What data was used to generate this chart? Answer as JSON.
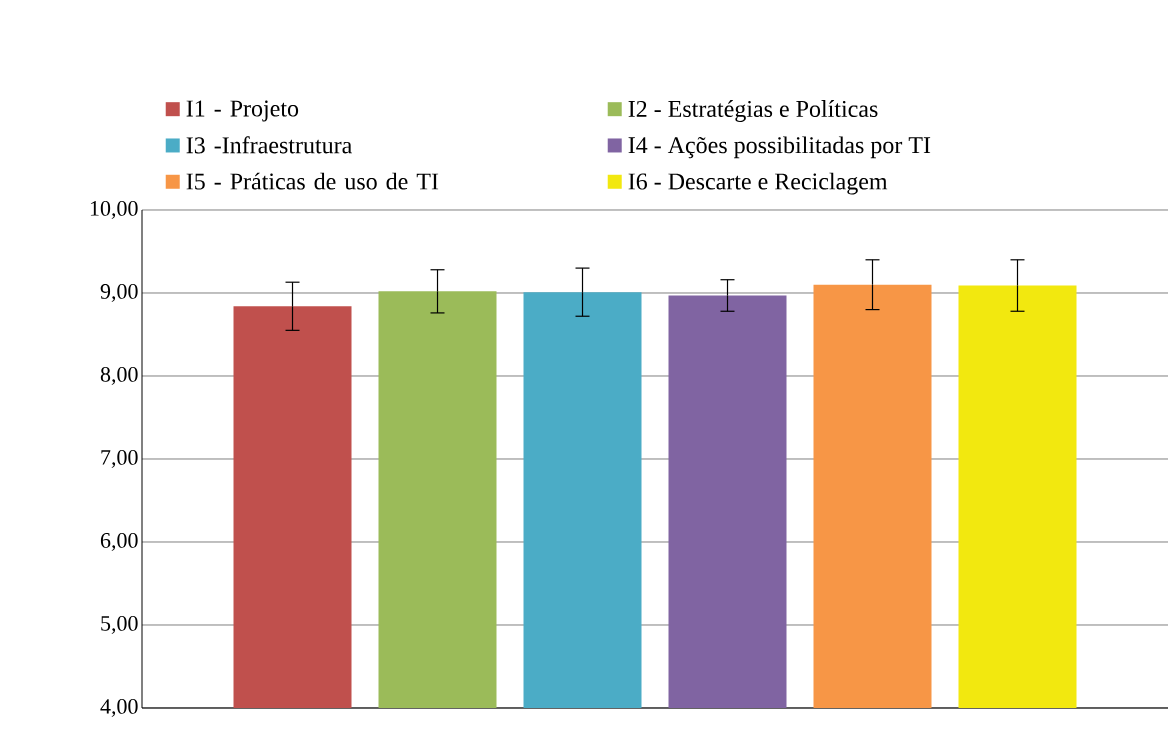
{
  "chart_data": {
    "type": "bar",
    "categories": [
      null
    ],
    "series": [
      {
        "name": "I1 - Projeto",
        "color": "#c0504d",
        "values": [
          8.84
        ],
        "errors": [
          0.29
        ]
      },
      {
        "name": "I2 - Estratégias e Políticas",
        "color": "#9bbb59",
        "values": [
          9.02
        ],
        "errors": [
          0.26
        ]
      },
      {
        "name": "I3 -Infraestrutura",
        "color": "#4bacc6",
        "values": [
          9.01
        ],
        "errors": [
          0.29
        ]
      },
      {
        "name": "I4 - Ações possibilitadas por TI",
        "color": "#8064a2",
        "values": [
          8.97
        ],
        "errors": [
          0.19
        ]
      },
      {
        "name": "I5 - Práticas de uso de TI",
        "color": "#f79646",
        "values": [
          9.1
        ],
        "errors": [
          0.3
        ]
      },
      {
        "name": "I6 - Descarte e Reciclagem",
        "color": "#f2e80f",
        "values": [
          9.09
        ],
        "errors": [
          0.31
        ]
      }
    ],
    "ylim": [
      4,
      10
    ],
    "yticks": [
      {
        "value": 4,
        "label": "4,00"
      },
      {
        "value": 5,
        "label": "5,00"
      },
      {
        "value": 6,
        "label": "6,00"
      },
      {
        "value": 7,
        "label": "7,00"
      },
      {
        "value": 8,
        "label": "8,00"
      },
      {
        "value": 9,
        "label": "9,00"
      },
      {
        "value": 10,
        "label": "10,00"
      }
    ],
    "grid": "y",
    "legend": "top"
  }
}
